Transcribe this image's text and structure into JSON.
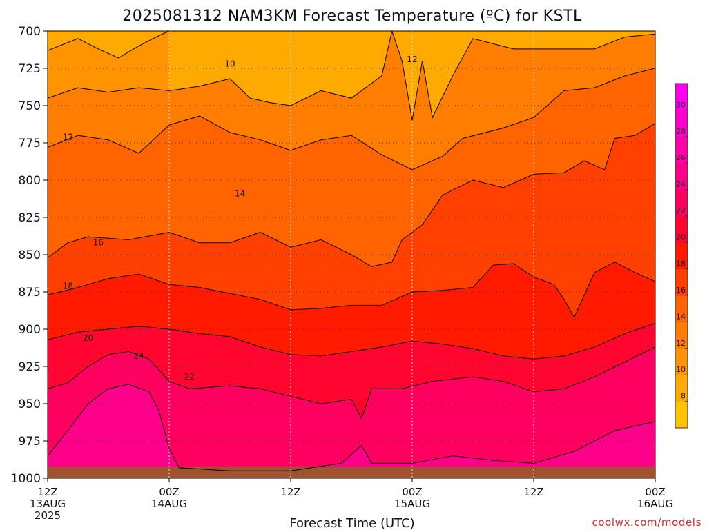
{
  "chart_data": {
    "type": "area",
    "title": "2025081312 NAM3KM Forecast Temperature (ºC) for KSTL",
    "xlabel": "Forecast Time (UTC)",
    "ylabel": "",
    "y_ticks": [
      700,
      725,
      750,
      775,
      800,
      825,
      850,
      875,
      900,
      925,
      950,
      975,
      1000
    ],
    "ylim": [
      1000,
      700
    ],
    "x_ticks": [
      {
        "line1": "12Z",
        "line2": "13AUG",
        "line3": "2025"
      },
      {
        "line1": "00Z",
        "line2": "14AUG",
        "line3": ""
      },
      {
        "line1": "12Z",
        "line2": "",
        "line3": ""
      },
      {
        "line1": "00Z",
        "line2": "15AUG",
        "line3": ""
      },
      {
        "line1": "12Z",
        "line2": "",
        "line3": ""
      },
      {
        "line1": "00Z",
        "line2": "16AUG",
        "line3": ""
      }
    ],
    "x_hours": [
      0,
      60
    ],
    "grid": true,
    "contour_levels": [
      10,
      12,
      14,
      16,
      18,
      20,
      22,
      24
    ],
    "colorbar": {
      "ticks": [
        8,
        10,
        12,
        14,
        16,
        18,
        20,
        22,
        24,
        26,
        28,
        30
      ],
      "bands": [
        {
          "level": 6,
          "color": "#ffc300"
        },
        {
          "level": 8,
          "color": "#ffaa00"
        },
        {
          "level": 10,
          "color": "#ff9400"
        },
        {
          "level": 12,
          "color": "#ff7d00"
        },
        {
          "level": 14,
          "color": "#ff6400"
        },
        {
          "level": 16,
          "color": "#ff4000"
        },
        {
          "level": 18,
          "color": "#ff1a00"
        },
        {
          "level": 20,
          "color": "#ff0530"
        },
        {
          "level": 22,
          "color": "#ff0060"
        },
        {
          "level": 24,
          "color": "#ff008a"
        },
        {
          "level": 26,
          "color": "#ff00aa"
        },
        {
          "level": 28,
          "color": "#ff00cc"
        },
        {
          "level": 30,
          "color": "#ff00ee"
        }
      ]
    },
    "contours": [
      {
        "level": 10,
        "label": "10",
        "label_at": [
          18,
          722
        ],
        "points": [
          [
            0,
            713
          ],
          [
            3,
            705
          ],
          [
            5,
            712
          ],
          [
            7,
            718
          ],
          [
            9,
            710
          ],
          [
            11,
            703
          ],
          [
            12,
            700
          ]
        ]
      },
      {
        "level": 12,
        "label": "12",
        "label_at": [
          2,
          771
        ],
        "points": [
          [
            0,
            745
          ],
          [
            3,
            738
          ],
          [
            6,
            741
          ],
          [
            9,
            738
          ],
          [
            12,
            740
          ],
          [
            15,
            737
          ],
          [
            18,
            732
          ],
          [
            20,
            745
          ],
          [
            22,
            748
          ],
          [
            24,
            750
          ],
          [
            27,
            740
          ],
          [
            30,
            745
          ],
          [
            33,
            730
          ],
          [
            34,
            700
          ]
        ]
      },
      {
        "level": 12,
        "label": "12",
        "label_at": [
          36,
          719
        ],
        "points": [
          [
            34,
            700
          ],
          [
            35,
            720
          ],
          [
            36,
            760
          ],
          [
            37,
            720
          ],
          [
            38,
            758
          ],
          [
            40,
            730
          ],
          [
            42,
            705
          ],
          [
            46,
            712
          ],
          [
            50,
            712
          ],
          [
            54,
            712
          ],
          [
            57,
            704
          ],
          [
            60,
            702
          ]
        ]
      },
      {
        "level": 14,
        "label": "14",
        "label_at": [
          19,
          809
        ],
        "points": [
          [
            0,
            778
          ],
          [
            3,
            770
          ],
          [
            6,
            773
          ],
          [
            9,
            782
          ],
          [
            12,
            763
          ],
          [
            15,
            757
          ],
          [
            18,
            768
          ],
          [
            21,
            773
          ],
          [
            24,
            780
          ],
          [
            27,
            773
          ],
          [
            30,
            770
          ],
          [
            33,
            783
          ],
          [
            36,
            793
          ],
          [
            39,
            784
          ],
          [
            41,
            772
          ],
          [
            45,
            765
          ],
          [
            48,
            758
          ],
          [
            51,
            740
          ],
          [
            54,
            738
          ],
          [
            57,
            730
          ],
          [
            60,
            725
          ]
        ]
      },
      {
        "level": 16,
        "label": "16",
        "label_at": [
          5,
          842
        ],
        "points": [
          [
            0,
            852
          ],
          [
            2,
            842
          ],
          [
            4,
            838
          ],
          [
            8,
            840
          ],
          [
            12,
            835
          ],
          [
            15,
            842
          ],
          [
            18,
            842
          ],
          [
            21,
            835
          ],
          [
            24,
            845
          ],
          [
            27,
            840
          ],
          [
            30,
            850
          ],
          [
            32,
            858
          ],
          [
            34,
            855
          ],
          [
            35,
            840
          ],
          [
            37,
            830
          ],
          [
            39,
            810
          ],
          [
            42,
            800
          ],
          [
            45,
            805
          ],
          [
            48,
            796
          ],
          [
            51,
            795
          ],
          [
            53,
            787
          ],
          [
            55,
            793
          ],
          [
            56,
            772
          ],
          [
            58,
            770
          ],
          [
            60,
            762
          ]
        ]
      },
      {
        "level": 18,
        "label": "18",
        "label_at": [
          2,
          871
        ],
        "points": [
          [
            0,
            877
          ],
          [
            3,
            872
          ],
          [
            6,
            866
          ],
          [
            9,
            863
          ],
          [
            12,
            870
          ],
          [
            15,
            872
          ],
          [
            18,
            876
          ],
          [
            21,
            880
          ],
          [
            24,
            887
          ],
          [
            27,
            886
          ],
          [
            30,
            884
          ],
          [
            33,
            884
          ],
          [
            36,
            875
          ],
          [
            39,
            874
          ],
          [
            42,
            872
          ],
          [
            44,
            857
          ],
          [
            46,
            856
          ],
          [
            48,
            865
          ],
          [
            50,
            870
          ],
          [
            51,
            880
          ],
          [
            52,
            892
          ],
          [
            54,
            862
          ],
          [
            56,
            855
          ],
          [
            58,
            862
          ],
          [
            60,
            868
          ]
        ]
      },
      {
        "level": 20,
        "label": "20",
        "label_at": [
          4,
          906
        ],
        "points": [
          [
            0,
            907
          ],
          [
            3,
            902
          ],
          [
            6,
            900
          ],
          [
            9,
            898
          ],
          [
            12,
            900
          ],
          [
            15,
            903
          ],
          [
            18,
            905
          ],
          [
            21,
            912
          ],
          [
            24,
            917
          ],
          [
            27,
            918
          ],
          [
            30,
            915
          ],
          [
            33,
            912
          ],
          [
            36,
            908
          ],
          [
            39,
            910
          ],
          [
            42,
            913
          ],
          [
            45,
            918
          ],
          [
            48,
            920
          ],
          [
            51,
            918
          ],
          [
            54,
            912
          ],
          [
            57,
            903
          ],
          [
            60,
            896
          ]
        ]
      },
      {
        "level": 22,
        "label": "22",
        "label_at": [
          14,
          932
        ],
        "points": [
          [
            0,
            940
          ],
          [
            2,
            936
          ],
          [
            4,
            925
          ],
          [
            6,
            917
          ],
          [
            8,
            915
          ],
          [
            10,
            920
          ],
          [
            12,
            935
          ],
          [
            14,
            940
          ],
          [
            18,
            938
          ],
          [
            21,
            940
          ],
          [
            24,
            945
          ],
          [
            27,
            950
          ],
          [
            30,
            947
          ],
          [
            31,
            960
          ],
          [
            32,
            940
          ],
          [
            35,
            940
          ],
          [
            38,
            935
          ],
          [
            42,
            932
          ],
          [
            45,
            935
          ],
          [
            48,
            942
          ],
          [
            51,
            940
          ],
          [
            54,
            932
          ],
          [
            57,
            922
          ],
          [
            60,
            912
          ]
        ]
      },
      {
        "level": 24,
        "label": "24",
        "label_at": [
          9,
          918
        ],
        "points": [
          [
            0,
            985
          ],
          [
            2,
            968
          ],
          [
            4,
            950
          ],
          [
            6,
            940
          ],
          [
            8,
            937
          ],
          [
            10,
            942
          ],
          [
            11,
            955
          ],
          [
            12,
            980
          ],
          [
            13,
            993
          ],
          [
            18,
            995
          ],
          [
            24,
            995
          ],
          [
            29,
            990
          ],
          [
            31,
            978
          ],
          [
            32,
            990
          ],
          [
            36,
            990
          ],
          [
            40,
            985
          ],
          [
            44,
            988
          ],
          [
            48,
            990
          ],
          [
            52,
            982
          ],
          [
            56,
            968
          ],
          [
            60,
            962
          ]
        ]
      }
    ]
  },
  "footer": {
    "credit": "coolwx.com/models"
  }
}
